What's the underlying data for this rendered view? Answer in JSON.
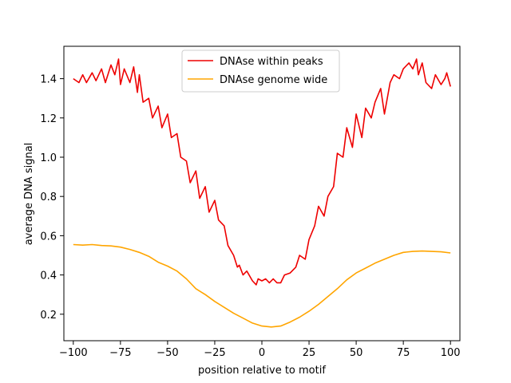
{
  "chart_data": {
    "type": "line",
    "title": "",
    "xlabel": "position relative to motif",
    "ylabel": "average DNA signal",
    "xlim": [
      -105,
      105
    ],
    "ylim": [
      0.065,
      1.565
    ],
    "xticks": [
      -100,
      -75,
      -50,
      -25,
      0,
      25,
      50,
      75,
      100
    ],
    "yticks": [
      0.2,
      0.4,
      0.6,
      0.8,
      1.0,
      1.2,
      1.4
    ],
    "ytick_labels": [
      "0.2",
      "0.4",
      "0.6",
      "0.8",
      "1.0",
      "1.2",
      "1.4"
    ],
    "grid": false,
    "legend_position": "upper-center",
    "series": [
      {
        "name": "DNAse within peaks",
        "color": "#ee0000",
        "x": [
          -100,
          -97,
          -95,
          -93,
          -90,
          -88,
          -85,
          -83,
          -80,
          -78,
          -76,
          -75,
          -73,
          -70,
          -68,
          -66,
          -65,
          -63,
          -60,
          -58,
          -55,
          -53,
          -50,
          -48,
          -45,
          -43,
          -40,
          -38,
          -35,
          -33,
          -30,
          -28,
          -25,
          -23,
          -20,
          -18,
          -15,
          -13,
          -12,
          -10,
          -8,
          -5,
          -3,
          -2,
          0,
          2,
          4,
          6,
          8,
          10,
          12,
          15,
          18,
          20,
          23,
          25,
          28,
          30,
          33,
          35,
          38,
          40,
          43,
          45,
          48,
          50,
          53,
          55,
          58,
          60,
          63,
          65,
          68,
          70,
          73,
          75,
          78,
          80,
          82,
          83,
          85,
          87,
          90,
          92,
          95,
          97,
          98,
          100
        ],
        "values": [
          1.4,
          1.38,
          1.42,
          1.38,
          1.43,
          1.39,
          1.45,
          1.38,
          1.47,
          1.42,
          1.5,
          1.37,
          1.45,
          1.38,
          1.46,
          1.33,
          1.42,
          1.28,
          1.3,
          1.2,
          1.26,
          1.15,
          1.22,
          1.1,
          1.12,
          1.0,
          0.98,
          0.87,
          0.93,
          0.79,
          0.85,
          0.72,
          0.78,
          0.68,
          0.65,
          0.55,
          0.5,
          0.44,
          0.45,
          0.4,
          0.42,
          0.37,
          0.35,
          0.38,
          0.37,
          0.38,
          0.36,
          0.38,
          0.36,
          0.36,
          0.4,
          0.41,
          0.44,
          0.5,
          0.48,
          0.58,
          0.65,
          0.75,
          0.7,
          0.8,
          0.85,
          1.02,
          1.0,
          1.15,
          1.05,
          1.22,
          1.1,
          1.25,
          1.2,
          1.28,
          1.35,
          1.22,
          1.38,
          1.42,
          1.4,
          1.45,
          1.48,
          1.45,
          1.5,
          1.42,
          1.48,
          1.38,
          1.35,
          1.42,
          1.37,
          1.4,
          1.43,
          1.36
        ]
      },
      {
        "name": "DNAse genome wide",
        "color": "#ffa500",
        "x": [
          -100,
          -95,
          -90,
          -85,
          -80,
          -75,
          -70,
          -65,
          -60,
          -55,
          -50,
          -45,
          -40,
          -35,
          -30,
          -25,
          -20,
          -15,
          -10,
          -5,
          0,
          5,
          10,
          15,
          20,
          25,
          30,
          35,
          40,
          45,
          50,
          55,
          60,
          65,
          70,
          75,
          80,
          85,
          90,
          95,
          100
        ],
        "values": [
          0.555,
          0.552,
          0.555,
          0.55,
          0.548,
          0.542,
          0.53,
          0.515,
          0.495,
          0.465,
          0.445,
          0.42,
          0.38,
          0.33,
          0.3,
          0.265,
          0.235,
          0.205,
          0.18,
          0.155,
          0.14,
          0.135,
          0.14,
          0.16,
          0.185,
          0.215,
          0.25,
          0.29,
          0.33,
          0.375,
          0.41,
          0.435,
          0.46,
          0.48,
          0.5,
          0.515,
          0.52,
          0.522,
          0.52,
          0.518,
          0.512
        ]
      }
    ]
  }
}
